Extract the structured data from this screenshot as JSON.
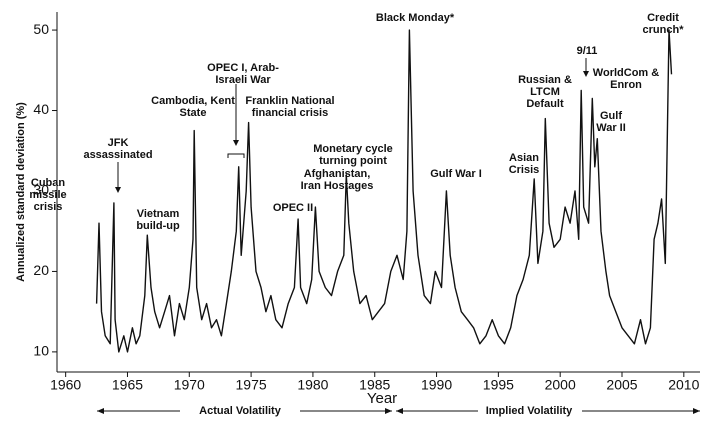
{
  "chart_data": {
    "type": "line",
    "x_label": "Year",
    "y_label": "Annualized standard deviation (%)",
    "xlim": [
      1959.3,
      2010.5
    ],
    "ylim": [
      7.5,
      51.5
    ],
    "xticks": [
      1960,
      1965,
      1970,
      1975,
      1980,
      1985,
      1990,
      1995,
      2000,
      2005,
      2010
    ],
    "yticks": [
      10,
      20,
      30,
      40,
      50
    ],
    "color": "#111111",
    "x": [
      1962.5,
      1962.7,
      1962.9,
      1963.2,
      1963.6,
      1963.9,
      1964.0,
      1964.3,
      1964.7,
      1965.0,
      1965.4,
      1965.7,
      1966.0,
      1966.4,
      1966.6,
      1966.9,
      1967.2,
      1967.6,
      1968.0,
      1968.4,
      1968.8,
      1969.2,
      1969.6,
      1970.0,
      1970.3,
      1970.4,
      1970.6,
      1971.0,
      1971.4,
      1971.8,
      1972.2,
      1972.6,
      1973.0,
      1973.4,
      1973.8,
      1974.0,
      1974.2,
      1974.6,
      1974.8,
      1975.0,
      1975.4,
      1975.8,
      1976.2,
      1976.6,
      1977.0,
      1977.5,
      1978.0,
      1978.5,
      1978.8,
      1979.0,
      1979.5,
      1979.9,
      1980.2,
      1980.5,
      1981.0,
      1981.5,
      1982.0,
      1982.5,
      1982.7,
      1982.9,
      1983.3,
      1983.8,
      1984.3,
      1984.8,
      1985.3,
      1985.8,
      1986.3,
      1986.8,
      1987.3,
      1987.6,
      1987.8,
      1988.1,
      1988.5,
      1989.0,
      1989.5,
      1989.9,
      1990.4,
      1990.8,
      1991.1,
      1991.5,
      1992.0,
      1992.5,
      1993.0,
      1993.5,
      1994.0,
      1994.5,
      1995.0,
      1995.5,
      1996.0,
      1996.5,
      1997.0,
      1997.5,
      1997.9,
      1998.2,
      1998.6,
      1998.8,
      1999.1,
      1999.5,
      2000.0,
      2000.4,
      2000.8,
      2001.2,
      2001.5,
      2001.7,
      2001.9,
      2002.3,
      2002.6,
      2002.8,
      2003.0,
      2003.3,
      2003.7,
      2004.0,
      2004.5,
      2005.0,
      2005.5,
      2006.0,
      2006.5,
      2006.9,
      2007.3,
      2007.6,
      2007.9,
      2008.2,
      2008.5,
      2008.8,
      2009.0
    ],
    "values": [
      16,
      26,
      15,
      12,
      11,
      28.5,
      14,
      10,
      12,
      10,
      13,
      11,
      12,
      17,
      24.5,
      18,
      15,
      13,
      15,
      17,
      12,
      16,
      14,
      18,
      24,
      37.5,
      18,
      14,
      16,
      13,
      14,
      12,
      16,
      20,
      25,
      33,
      22,
      30,
      38.5,
      28,
      20,
      18,
      15,
      17,
      14,
      13,
      16,
      18,
      26.5,
      18,
      16,
      19,
      28,
      20,
      18,
      17,
      20,
      22,
      32,
      26,
      20,
      16,
      17,
      14,
      15,
      16,
      20,
      22,
      19,
      25,
      50,
      30,
      22,
      17,
      16,
      20,
      18,
      30,
      22,
      18,
      15,
      14,
      13,
      11,
      12,
      14,
      12,
      11,
      13,
      17,
      19,
      22,
      31.5,
      21,
      25,
      39,
      26,
      23,
      24,
      28,
      26,
      30,
      24,
      42.5,
      28,
      26,
      41.5,
      33,
      36.5,
      25,
      20,
      17,
      15,
      13,
      12,
      11,
      14,
      11,
      13,
      24,
      26,
      29,
      21,
      50,
      44.5
    ],
    "annotations": [
      "Cuban\nmissile\ncrisis",
      "JFK\nassassinated",
      "Vietnam\nbuild-up",
      "Cambodia, Kent\nState",
      "OPEC I, Arab-\nIsraeli War",
      "Franklin National\nfinancial crisis",
      "Afghanistan,\nIran Hostages",
      "OPEC II",
      "Monetary cycle\nturning point",
      "Black Monday*",
      "Gulf War I",
      "Asian\nCrisis",
      "Russian &\nLTCM\nDefault",
      "9/11",
      "WorldCom &\nEnron",
      "Gulf\nWar II",
      "Credit crunch*"
    ],
    "periods": [
      "Actual Volatility",
      "Implied Volatility"
    ]
  }
}
